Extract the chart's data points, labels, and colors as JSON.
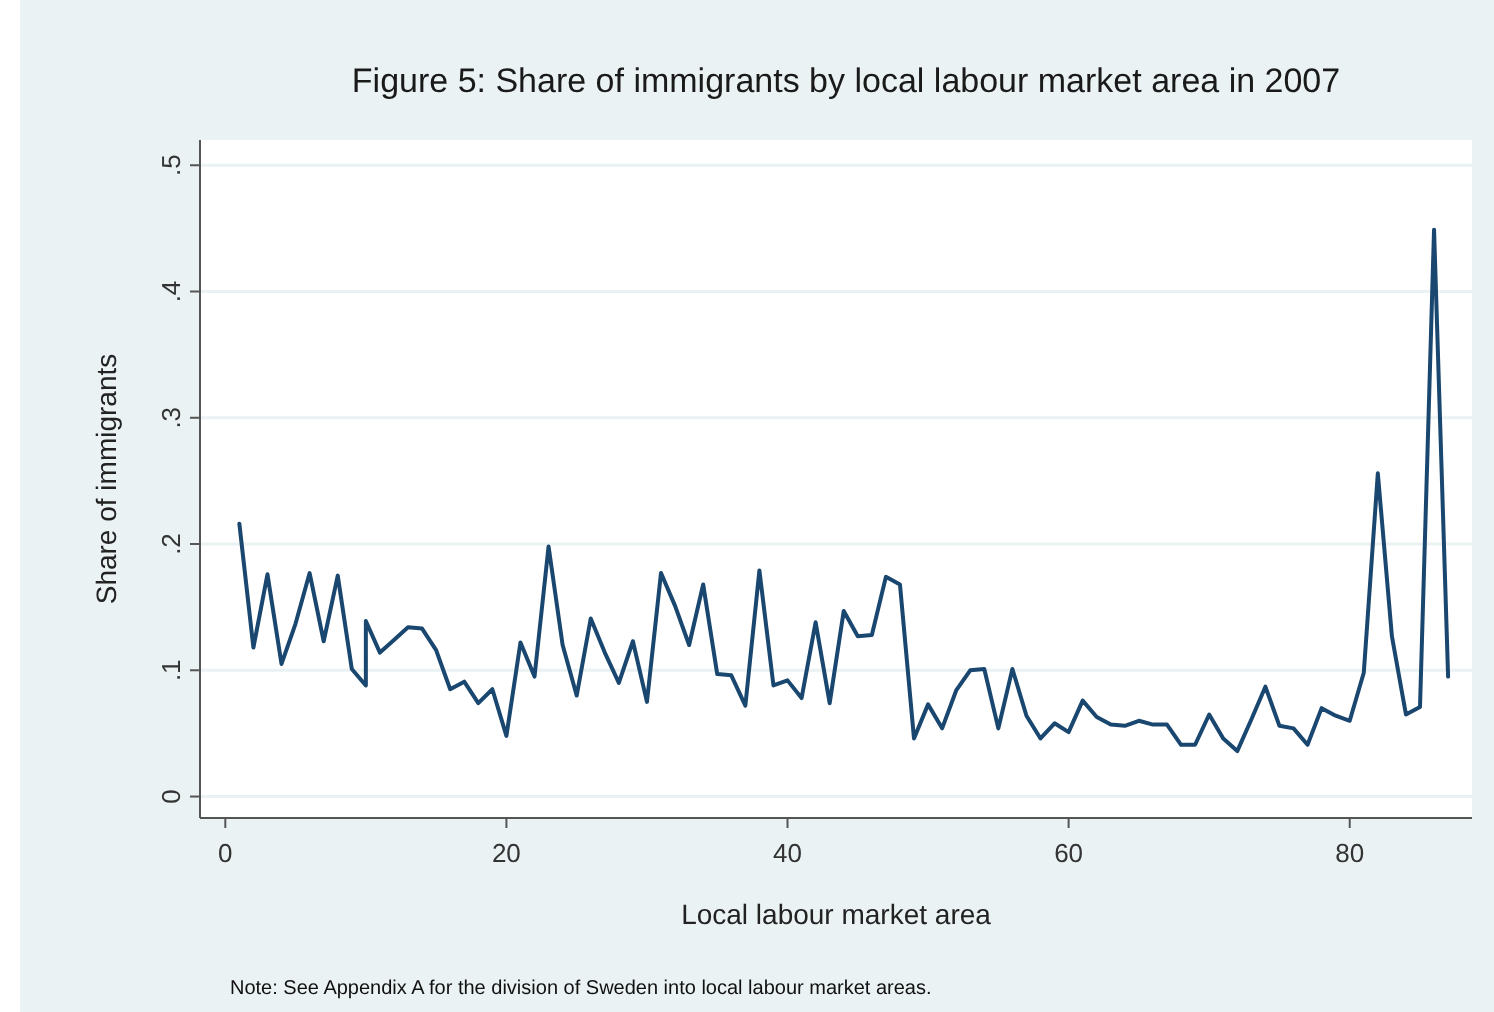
{
  "chart_data": {
    "type": "line",
    "title": "Figure 5: Share of immigrants by local labour market area in 2007",
    "xlabel": "Local labour market area",
    "ylabel": "Share of immigrants",
    "annotations": [
      "Note: See Appendix A for the division of Sweden into local labour market areas."
    ],
    "x": [
      1,
      2,
      3,
      4,
      5,
      6,
      7,
      8,
      9,
      10,
      10,
      11,
      12,
      13,
      14,
      15,
      16,
      17,
      18,
      19,
      20,
      21,
      22,
      23,
      24,
      25,
      26,
      27,
      28,
      29,
      30,
      31,
      32,
      33,
      34,
      35,
      36,
      37,
      38,
      39,
      40,
      41,
      42,
      43,
      44,
      45,
      46,
      47,
      48,
      49,
      50,
      51,
      52,
      53,
      54,
      55,
      56,
      57,
      58,
      59,
      60,
      61,
      62,
      63,
      64,
      65,
      66,
      67,
      68,
      69,
      70,
      71,
      72,
      73,
      74,
      75,
      76,
      77,
      78,
      79,
      80,
      81,
      82,
      83,
      84,
      85,
      86,
      87
    ],
    "series": [
      {
        "color": "#1a476f",
        "values": [
          0.216,
          0.118,
          0.176,
          0.105,
          0.137,
          0.177,
          0.123,
          0.175,
          0.101,
          0.088,
          0.139,
          0.114,
          0.124,
          0.134,
          0.133,
          0.116,
          0.085,
          0.091,
          0.074,
          0.085,
          0.048,
          0.122,
          0.095,
          0.198,
          0.12,
          0.08,
          0.141,
          0.114,
          0.09,
          0.123,
          0.075,
          0.177,
          0.151,
          0.12,
          0.168,
          0.097,
          0.096,
          0.072,
          0.179,
          0.088,
          0.092,
          0.078,
          0.138,
          0.074,
          0.147,
          0.127,
          0.128,
          0.174,
          0.168,
          0.046,
          0.073,
          0.054,
          0.084,
          0.1,
          0.101,
          0.054,
          0.101,
          0.064,
          0.046,
          0.058,
          0.051,
          0.076,
          0.063,
          0.057,
          0.056,
          0.06,
          0.057,
          0.057,
          0.041,
          0.041,
          0.065,
          0.046,
          0.036,
          0.061,
          0.087,
          0.056,
          0.054,
          0.041,
          0.07,
          0.064,
          0.06,
          0.098,
          0.256,
          0.127,
          0.065,
          0.071,
          0.449,
          0.095
        ]
      }
    ],
    "xlim": [
      -1.8,
      88.7
    ],
    "xticks": [
      0,
      20,
      40,
      60,
      80
    ],
    "ylim": [
      -0.017,
      0.52
    ],
    "yticks": [
      0,
      {
        "value": 0.1,
        "label": ".1"
      },
      {
        "value": 0.2,
        "label": ".2"
      },
      {
        "value": 0.3,
        "label": ".3"
      },
      {
        "value": 0.4,
        "label": ".4"
      },
      {
        "value": 0.5,
        "label": ".5"
      }
    ],
    "grid": "y",
    "marker": "none",
    "line_style": "solid"
  }
}
